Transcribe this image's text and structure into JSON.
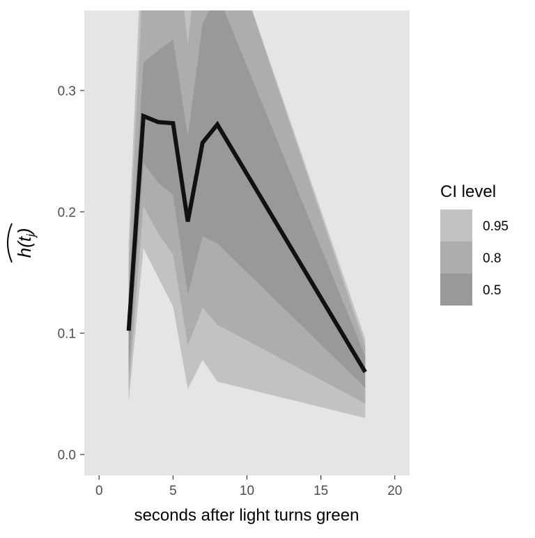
{
  "chart_data": {
    "type": "area",
    "xlabel": "seconds after light turns green",
    "ylabel": "h(t_j)",
    "xlim": [
      -1,
      21
    ],
    "ylim": [
      -0.0172,
      0.366
    ],
    "x_ticks": [
      "0",
      "5",
      "10",
      "15",
      "20"
    ],
    "x_tick_values": [
      0,
      5,
      10,
      15,
      20
    ],
    "y_ticks": [
      "0.0",
      "0.1",
      "0.2",
      "0.3"
    ],
    "y_tick_values": [
      0.0,
      0.1,
      0.2,
      0.3
    ],
    "grid": false,
    "legend_position": "right",
    "legend": {
      "title": "CI level",
      "entries": [
        {
          "label": "0.95",
          "color": "#c2c2c2"
        },
        {
          "label": "0.8",
          "color": "#adadad"
        },
        {
          "label": "0.5",
          "color": "#999999"
        }
      ]
    },
    "panel_background": "#e5e5e5",
    "line_color": "#111111",
    "x": [
      2,
      3,
      4,
      5,
      6,
      7,
      8,
      18
    ],
    "series": [
      {
        "name": "estimate",
        "values": [
          0.102,
          0.279,
          0.274,
          0.273,
          0.192,
          0.257,
          0.272,
          0.068
        ]
      }
    ],
    "ribbons": [
      {
        "level": "0.95",
        "color": "#c2c2c2",
        "lower": [
          0.043,
          0.17,
          0.146,
          0.122,
          0.054,
          0.078,
          0.06,
          0.03
        ],
        "upper": [
          0.175,
          0.45,
          0.42,
          0.45,
          0.4,
          0.45,
          0.45,
          0.095
        ]
      },
      {
        "level": "0.8",
        "color": "#adadad",
        "lower": [
          0.053,
          0.205,
          0.182,
          0.165,
          0.09,
          0.121,
          0.107,
          0.042
        ],
        "upper": [
          0.155,
          0.4,
          0.37,
          0.45,
          0.338,
          0.45,
          0.45,
          0.089
        ]
      },
      {
        "level": "0.5",
        "color": "#999999",
        "lower": [
          0.068,
          0.24,
          0.224,
          0.214,
          0.132,
          0.18,
          0.174,
          0.055
        ],
        "upper": [
          0.13,
          0.323,
          0.333,
          0.342,
          0.262,
          0.355,
          0.38,
          0.081
        ]
      }
    ]
  }
}
